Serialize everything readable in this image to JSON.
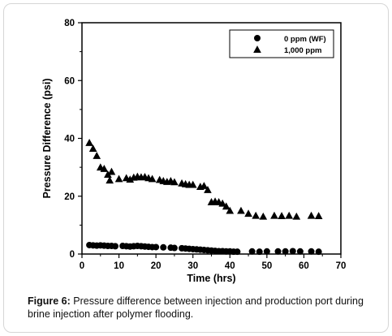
{
  "chart_data": {
    "type": "scatter",
    "title": "",
    "xlabel": "Time (hrs)",
    "ylabel": "Pressure Difference (psi)",
    "xlim": [
      0,
      70
    ],
    "ylim": [
      0,
      80
    ],
    "xticks": [
      0,
      10,
      20,
      30,
      40,
      50,
      60,
      70
    ],
    "yticks": [
      0,
      20,
      40,
      60,
      80
    ],
    "grid": false,
    "legend_position": "top-right",
    "series": [
      {
        "name": "0 ppm (WF)",
        "marker": "circle",
        "color": "#000000",
        "points": [
          [
            2,
            3.1
          ],
          [
            3,
            3.0
          ],
          [
            4,
            2.9
          ],
          [
            5,
            3.0
          ],
          [
            6,
            2.9
          ],
          [
            7,
            2.8
          ],
          [
            8,
            2.8
          ],
          [
            9,
            2.7
          ],
          [
            11,
            2.8
          ],
          [
            12,
            2.7
          ],
          [
            13,
            2.6
          ],
          [
            14,
            2.7
          ],
          [
            15,
            2.8
          ],
          [
            16,
            2.7
          ],
          [
            17,
            2.6
          ],
          [
            18,
            2.5
          ],
          [
            19,
            2.4
          ],
          [
            20,
            2.4
          ],
          [
            22,
            2.3
          ],
          [
            24,
            2.2
          ],
          [
            25,
            2.1
          ],
          [
            27,
            2.0
          ],
          [
            28,
            1.9
          ],
          [
            29,
            1.8
          ],
          [
            30,
            1.7
          ],
          [
            31,
            1.6
          ],
          [
            32,
            1.5
          ],
          [
            33,
            1.4
          ],
          [
            34,
            1.3
          ],
          [
            35,
            1.2
          ],
          [
            36,
            1.1
          ],
          [
            37,
            1.0
          ],
          [
            38,
            1.0
          ],
          [
            39,
            0.9
          ],
          [
            40,
            0.9
          ],
          [
            41,
            0.8
          ],
          [
            42,
            0.8
          ],
          [
            46,
            0.9
          ],
          [
            48,
            0.8
          ],
          [
            50,
            0.9
          ],
          [
            53,
            0.9
          ],
          [
            55,
            0.9
          ],
          [
            57,
            1.0
          ],
          [
            59,
            0.9
          ],
          [
            62,
            0.9
          ],
          [
            64,
            0.8
          ]
        ]
      },
      {
        "name": "1,000 ppm",
        "marker": "triangle",
        "color": "#000000",
        "points": [
          [
            2,
            38.5
          ],
          [
            3,
            36.5
          ],
          [
            4,
            34.0
          ],
          [
            5,
            30.0
          ],
          [
            6,
            29.5
          ],
          [
            7,
            27.5
          ],
          [
            7.5,
            25.5
          ],
          [
            8,
            28.5
          ],
          [
            10,
            26.0
          ],
          [
            12,
            26.3
          ],
          [
            13,
            25.8
          ],
          [
            14,
            26.5
          ],
          [
            15,
            26.8
          ],
          [
            16,
            26.6
          ],
          [
            17,
            26.7
          ],
          [
            18,
            26.3
          ],
          [
            19,
            26.0
          ],
          [
            21,
            25.7
          ],
          [
            22,
            25.3
          ],
          [
            23,
            25.0
          ],
          [
            24,
            25.3
          ],
          [
            25,
            24.9
          ],
          [
            27,
            24.5
          ],
          [
            28,
            24.2
          ],
          [
            29,
            24.0
          ],
          [
            30,
            24.0
          ],
          [
            32,
            23.3
          ],
          [
            33,
            23.6
          ],
          [
            34,
            22.2
          ],
          [
            35,
            18.0
          ],
          [
            36,
            18.2
          ],
          [
            37,
            18.0
          ],
          [
            38,
            17.5
          ],
          [
            39,
            16.5
          ],
          [
            40,
            15.0
          ],
          [
            43,
            15.0
          ],
          [
            45,
            14.0
          ],
          [
            47,
            13.3
          ],
          [
            49,
            13.0
          ],
          [
            52,
            13.3
          ],
          [
            54,
            13.2
          ],
          [
            56,
            13.3
          ],
          [
            58,
            13.0
          ],
          [
            62,
            13.3
          ],
          [
            64,
            13.2
          ]
        ]
      }
    ]
  },
  "caption": {
    "label": "Figure 6:",
    "text": " Pressure difference between injection and production port during brine injection after polymer flooding."
  }
}
